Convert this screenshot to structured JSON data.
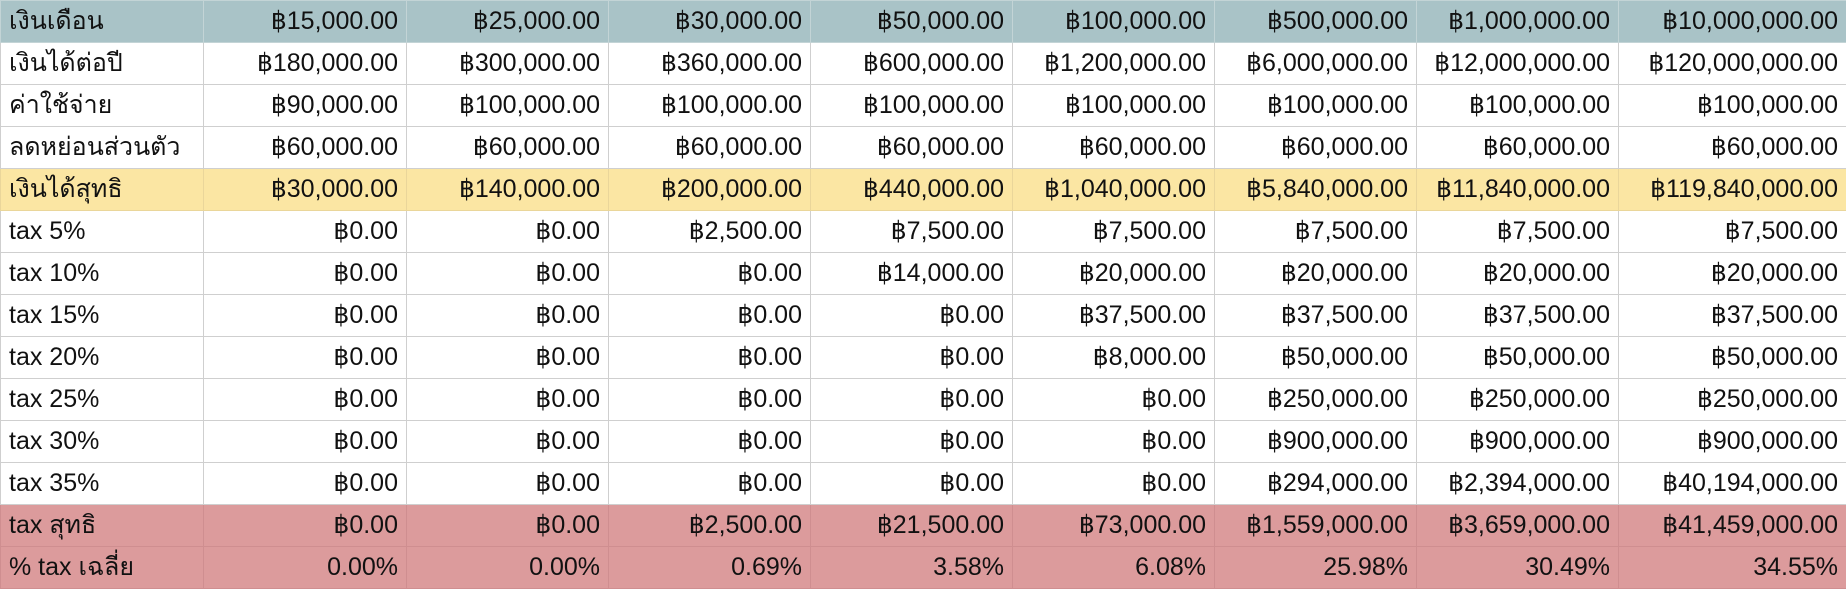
{
  "colors": {
    "header_row": "#a9c3c7",
    "net_income_row": "#fbe6a3",
    "total_tax_rows": "#dc9b9c",
    "grid_line": "#cfcfcf"
  },
  "rows": [
    {
      "label": "เงินเดือน",
      "style": "header",
      "values": [
        "฿15,000.00",
        "฿25,000.00",
        "฿30,000.00",
        "฿50,000.00",
        "฿100,000.00",
        "฿500,000.00",
        "฿1,000,000.00",
        "฿10,000,000.00"
      ]
    },
    {
      "label": "เงินได้ต่อปี",
      "style": "plain",
      "values": [
        "฿180,000.00",
        "฿300,000.00",
        "฿360,000.00",
        "฿600,000.00",
        "฿1,200,000.00",
        "฿6,000,000.00",
        "฿12,000,000.00",
        "฿120,000,000.00"
      ]
    },
    {
      "label": "ค่าใช้จ่าย",
      "style": "plain",
      "values": [
        "฿90,000.00",
        "฿100,000.00",
        "฿100,000.00",
        "฿100,000.00",
        "฿100,000.00",
        "฿100,000.00",
        "฿100,000.00",
        "฿100,000.00"
      ]
    },
    {
      "label": "ลดหย่อนส่วนตัว",
      "style": "plain",
      "values": [
        "฿60,000.00",
        "฿60,000.00",
        "฿60,000.00",
        "฿60,000.00",
        "฿60,000.00",
        "฿60,000.00",
        "฿60,000.00",
        "฿60,000.00"
      ]
    },
    {
      "label": "เงินได้สุทธิ",
      "style": "net",
      "values": [
        "฿30,000.00",
        "฿140,000.00",
        "฿200,000.00",
        "฿440,000.00",
        "฿1,040,000.00",
        "฿5,840,000.00",
        "฿11,840,000.00",
        "฿119,840,000.00"
      ]
    },
    {
      "label": "tax 5%",
      "style": "plain",
      "values": [
        "฿0.00",
        "฿0.00",
        "฿2,500.00",
        "฿7,500.00",
        "฿7,500.00",
        "฿7,500.00",
        "฿7,500.00",
        "฿7,500.00"
      ]
    },
    {
      "label": "tax 10%",
      "style": "plain",
      "values": [
        "฿0.00",
        "฿0.00",
        "฿0.00",
        "฿14,000.00",
        "฿20,000.00",
        "฿20,000.00",
        "฿20,000.00",
        "฿20,000.00"
      ]
    },
    {
      "label": "tax 15%",
      "style": "plain",
      "values": [
        "฿0.00",
        "฿0.00",
        "฿0.00",
        "฿0.00",
        "฿37,500.00",
        "฿37,500.00",
        "฿37,500.00",
        "฿37,500.00"
      ]
    },
    {
      "label": "tax 20%",
      "style": "plain",
      "values": [
        "฿0.00",
        "฿0.00",
        "฿0.00",
        "฿0.00",
        "฿8,000.00",
        "฿50,000.00",
        "฿50,000.00",
        "฿50,000.00"
      ]
    },
    {
      "label": "tax 25%",
      "style": "plain",
      "values": [
        "฿0.00",
        "฿0.00",
        "฿0.00",
        "฿0.00",
        "฿0.00",
        "฿250,000.00",
        "฿250,000.00",
        "฿250,000.00"
      ]
    },
    {
      "label": "tax 30%",
      "style": "plain",
      "values": [
        "฿0.00",
        "฿0.00",
        "฿0.00",
        "฿0.00",
        "฿0.00",
        "฿900,000.00",
        "฿900,000.00",
        "฿900,000.00"
      ]
    },
    {
      "label": "tax 35%",
      "style": "plain",
      "values": [
        "฿0.00",
        "฿0.00",
        "฿0.00",
        "฿0.00",
        "฿0.00",
        "฿294,000.00",
        "฿2,394,000.00",
        "฿40,194,000.00"
      ]
    },
    {
      "label": "tax สุทธิ",
      "style": "total",
      "values": [
        "฿0.00",
        "฿0.00",
        "฿2,500.00",
        "฿21,500.00",
        "฿73,000.00",
        "฿1,559,000.00",
        "฿3,659,000.00",
        "฿41,459,000.00"
      ]
    },
    {
      "label": "% tax เฉลี่ย",
      "style": "total",
      "values": [
        "0.00%",
        "0.00%",
        "0.69%",
        "3.58%",
        "6.08%",
        "25.98%",
        "30.49%",
        "34.55%"
      ]
    }
  ]
}
